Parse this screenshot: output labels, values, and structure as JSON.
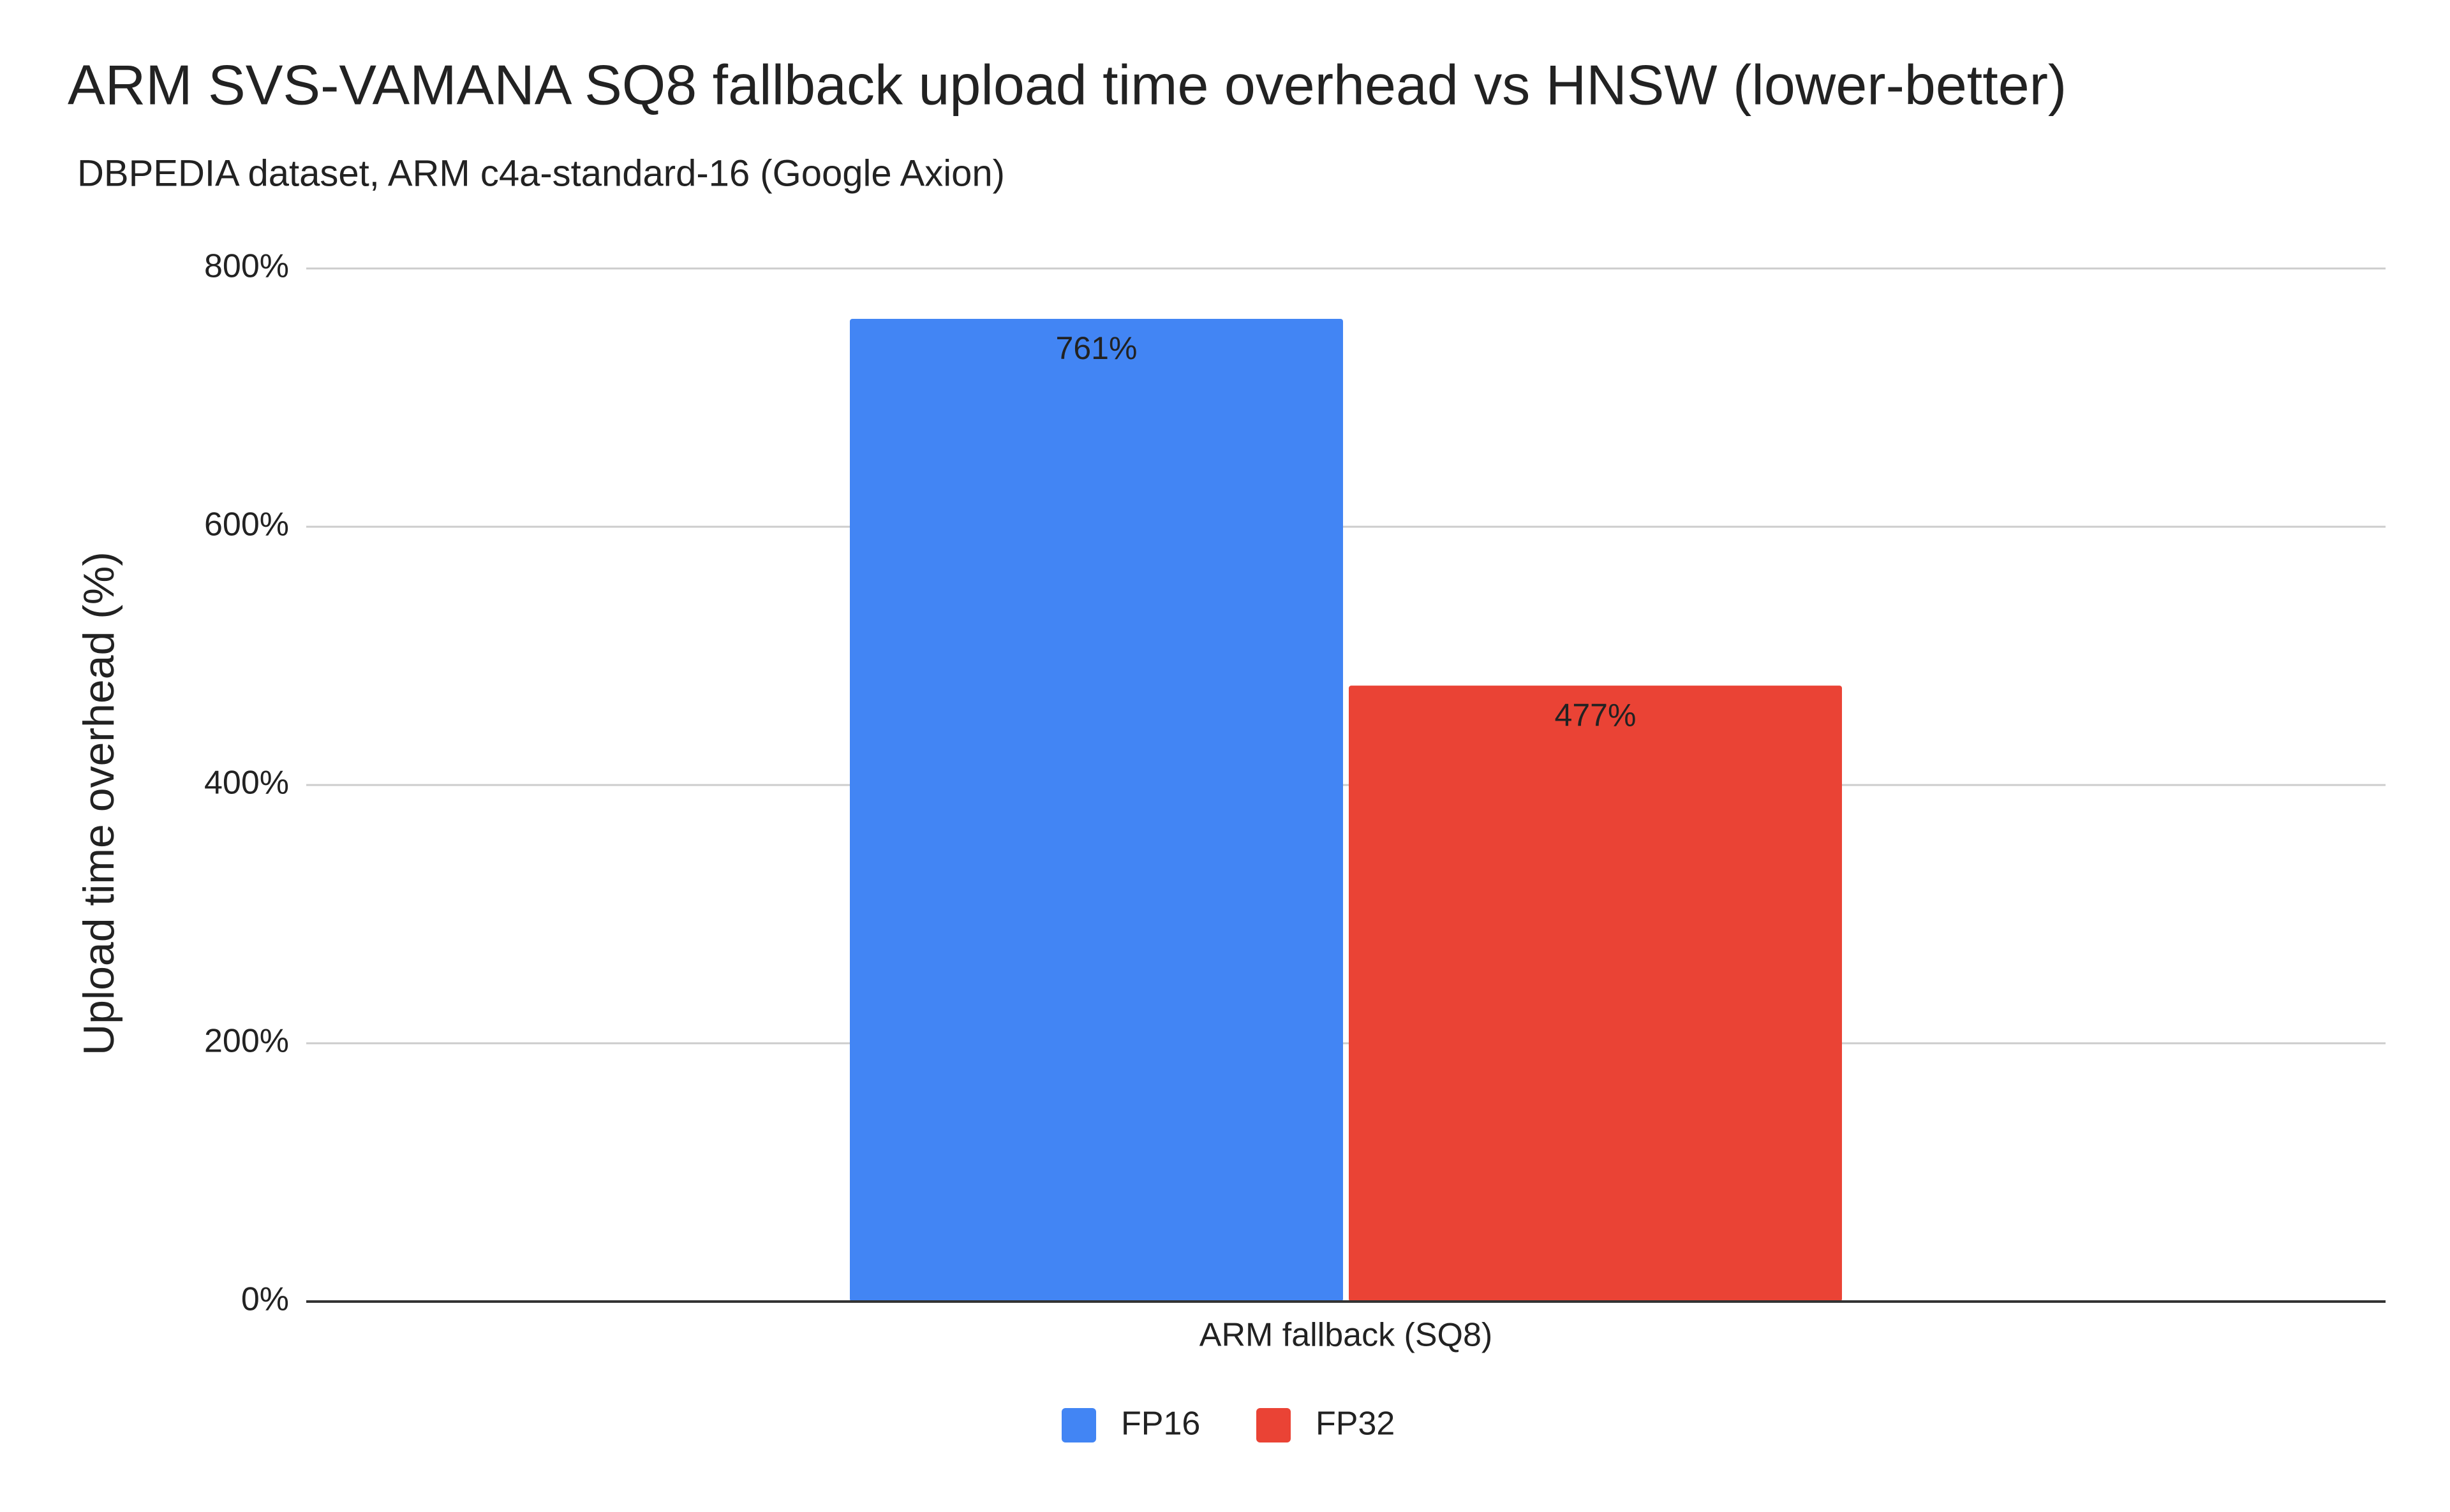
{
  "chart_data": {
    "type": "bar",
    "title": "ARM SVS-VAMANA SQ8 fallback upload time overhead vs HNSW (lower-better)",
    "subtitle": "DBPEDIA dataset, ARM c4a-standard-16 (Google Axion)",
    "y_label": "Upload time overhead (%)",
    "categories": [
      "ARM fallback (SQ8)"
    ],
    "series": [
      {
        "name": "FP16",
        "color": "#4285f4",
        "values": [
          761
        ],
        "value_labels": [
          "761%"
        ]
      },
      {
        "name": "FP32",
        "color": "#ea4335",
        "values": [
          477
        ],
        "value_labels": [
          "477%"
        ]
      }
    ],
    "ylim": [
      0,
      800
    ],
    "yticks": [
      {
        "value": 0,
        "label": "0%"
      },
      {
        "value": 200,
        "label": "200%"
      },
      {
        "value": 400,
        "label": "400%"
      },
      {
        "value": 600,
        "label": "600%"
      },
      {
        "value": 800,
        "label": "800%"
      }
    ],
    "grid": true,
    "legend": "bottom"
  }
}
